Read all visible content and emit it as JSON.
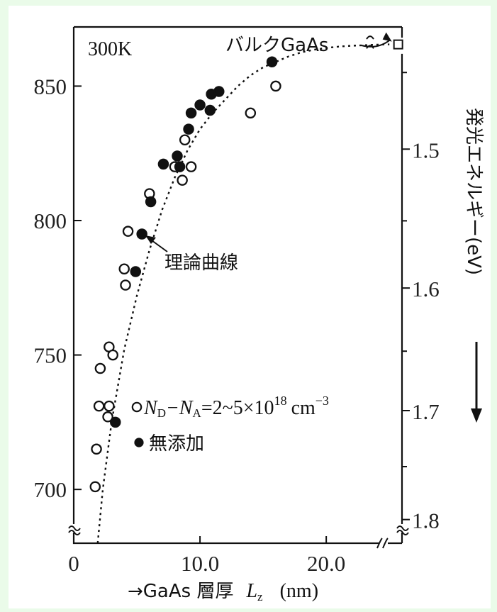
{
  "chart_data": {
    "type": "scatter",
    "annotation_temp": "300K",
    "bulk_label": "バルクGaAs",
    "curve_label": "理論曲線",
    "xlabel": "→GaAs 層厚",
    "xlabel_symbol": "L",
    "xlabel_sub": "z",
    "xlabel_unit": "(nm)",
    "ylabel_right": "発光エネルギー(eV)",
    "xlim": [
      0,
      26
    ],
    "ylim": [
      680,
      872
    ],
    "x_ticks": [
      0,
      10,
      20
    ],
    "x_tick_labels": [
      "0",
      "10.0",
      "20.0"
    ],
    "y_ticks": [
      700,
      750,
      800,
      850
    ],
    "y_tick_labels": [
      "700",
      "750",
      "800",
      "850"
    ],
    "y2_ticks": [
      1.5,
      1.6,
      1.7,
      1.8
    ],
    "y2_tick_labels": [
      "1.5",
      "1.6",
      "1.7",
      "1.8"
    ],
    "y2_minor_ticks": [
      1.45,
      1.55,
      1.65,
      1.75
    ],
    "legend": [
      {
        "marker": "open",
        "prefix": "N",
        "sub1": "D",
        "mid": "−N",
        "sub2": "A",
        "tail": "=2~5×10",
        "sup": "18",
        "unit": "cm",
        "unit_sup": "−3"
      },
      {
        "marker": "filled",
        "label": "無添加"
      }
    ],
    "series": [
      {
        "marker": "open",
        "points": [
          [
            1.7,
            701
          ],
          [
            1.8,
            715
          ],
          [
            2.0,
            731
          ],
          [
            2.1,
            745
          ],
          [
            2.7,
            727
          ],
          [
            2.8,
            731
          ],
          [
            2.8,
            753
          ],
          [
            3.1,
            750
          ],
          [
            4.0,
            782
          ],
          [
            4.1,
            776
          ],
          [
            4.3,
            796
          ],
          [
            6.0,
            810
          ],
          [
            8.0,
            820
          ],
          [
            8.6,
            815
          ],
          [
            8.8,
            830
          ],
          [
            9.3,
            820
          ],
          [
            14.0,
            840
          ],
          [
            16.0,
            850
          ]
        ]
      },
      {
        "marker": "filled",
        "points": [
          [
            3.3,
            725
          ],
          [
            4.9,
            781
          ],
          [
            5.4,
            795
          ],
          [
            6.1,
            807
          ],
          [
            7.1,
            821
          ],
          [
            8.2,
            824
          ],
          [
            8.4,
            820
          ],
          [
            9.1,
            834
          ],
          [
            9.3,
            840
          ],
          [
            10.0,
            843
          ],
          [
            10.8,
            841
          ],
          [
            10.9,
            847
          ],
          [
            11.5,
            848
          ],
          [
            15.7,
            859
          ]
        ]
      }
    ],
    "theory_curve": [
      [
        1.9,
        680
      ],
      [
        2.3,
        700
      ],
      [
        3.0,
        725
      ],
      [
        4.0,
        752
      ],
      [
        5.0,
        772
      ],
      [
        6.0,
        789
      ],
      [
        7.0,
        804
      ],
      [
        8.0,
        816
      ],
      [
        9.0,
        826
      ],
      [
        10.0,
        834
      ],
      [
        11.0,
        840
      ],
      [
        12.0,
        845
      ],
      [
        13.0,
        850
      ],
      [
        14.0,
        854
      ],
      [
        15.0,
        857
      ],
      [
        16.0,
        859
      ],
      [
        17.0,
        861
      ],
      [
        18.0,
        862.5
      ],
      [
        19.0,
        863.5
      ],
      [
        20.0,
        864.2
      ],
      [
        21.0,
        864.7
      ],
      [
        22.0,
        865.0
      ],
      [
        23.0,
        865.2
      ],
      [
        24.0,
        865.4
      ],
      [
        25.0,
        865.5
      ]
    ],
    "bulk_point": [
      25.7,
      865.5
    ]
  }
}
